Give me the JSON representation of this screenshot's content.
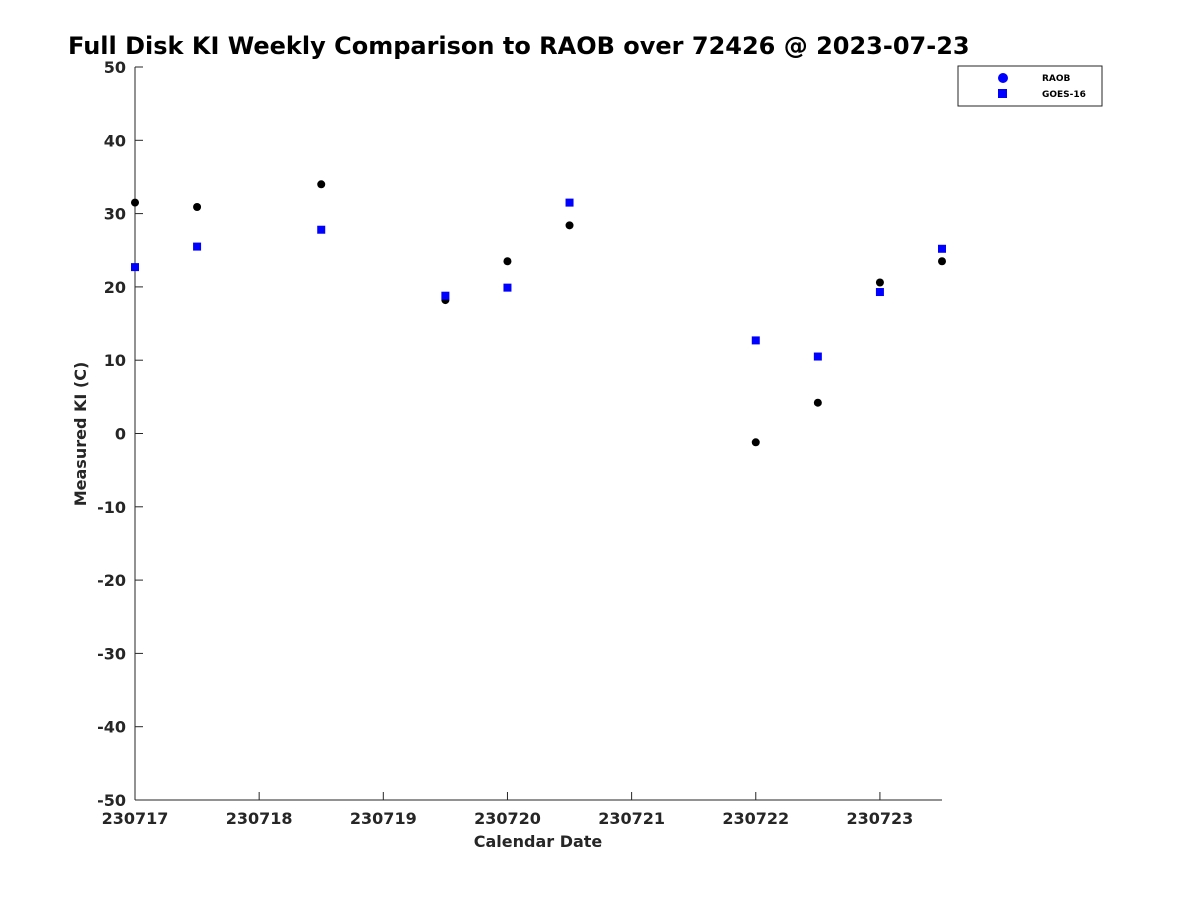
{
  "chart_data": {
    "type": "scatter",
    "title": "Full Disk KI Weekly Comparison to RAOB over 72426 @ 2023-07-23",
    "xlabel": "Calendar Date",
    "ylabel": "Measured KI (C)",
    "xlim": [
      230717,
      230723.5
    ],
    "ylim": [
      -50,
      50
    ],
    "x_ticks": [
      230717,
      230718,
      230719,
      230720,
      230721,
      230722,
      230723
    ],
    "x_tick_labels": [
      "230717",
      "230718",
      "230719",
      "230720",
      "230721",
      "230722",
      "230723"
    ],
    "y_ticks": [
      -50,
      -40,
      -30,
      -20,
      -10,
      0,
      10,
      20,
      30,
      40,
      50
    ],
    "y_tick_labels": [
      "-50",
      "-40",
      "-30",
      "-20",
      "-10",
      "0",
      "10",
      "20",
      "30",
      "40",
      "50"
    ],
    "grid": false,
    "legend_position": "top-right",
    "series": [
      {
        "name": "RAOB",
        "marker": "circle",
        "color": "#000000",
        "legend_color": "#0000ff",
        "points": [
          {
            "x": 230717.0,
            "y": 31.5
          },
          {
            "x": 230717.5,
            "y": 30.9
          },
          {
            "x": 230718.5,
            "y": 34.0
          },
          {
            "x": 230719.5,
            "y": 18.2
          },
          {
            "x": 230720.0,
            "y": 23.5
          },
          {
            "x": 230720.5,
            "y": 28.4
          },
          {
            "x": 230722.0,
            "y": -1.2
          },
          {
            "x": 230722.5,
            "y": 4.2
          },
          {
            "x": 230723.0,
            "y": 20.6
          },
          {
            "x": 230723.5,
            "y": 23.5
          }
        ]
      },
      {
        "name": "GOES-16",
        "marker": "square",
        "color": "#0000ff",
        "legend_color": "#0000ff",
        "points": [
          {
            "x": 230717.0,
            "y": 22.7
          },
          {
            "x": 230717.5,
            "y": 25.5
          },
          {
            "x": 230718.5,
            "y": 27.8
          },
          {
            "x": 230719.5,
            "y": 18.8
          },
          {
            "x": 230720.0,
            "y": 19.9
          },
          {
            "x": 230720.5,
            "y": 31.5
          },
          {
            "x": 230722.0,
            "y": 12.7
          },
          {
            "x": 230722.5,
            "y": 10.5
          },
          {
            "x": 230723.0,
            "y": 19.3
          },
          {
            "x": 230723.5,
            "y": 25.2
          }
        ]
      }
    ]
  }
}
